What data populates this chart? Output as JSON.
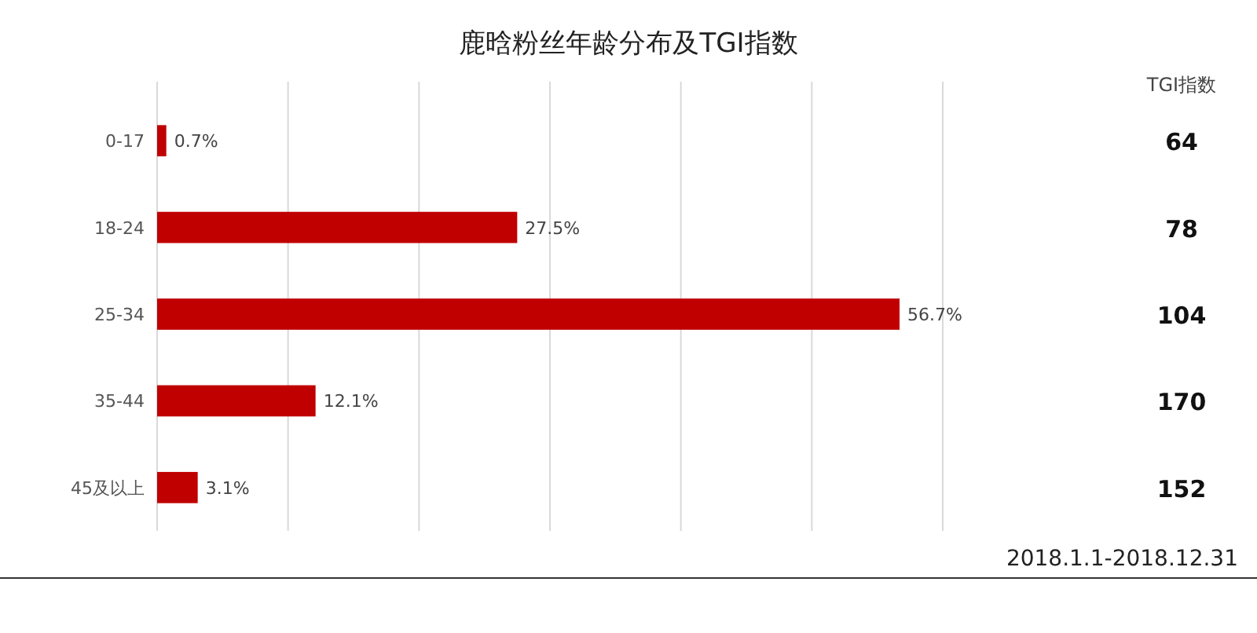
{
  "chart_data": {
    "type": "bar",
    "orientation": "horizontal",
    "title": "鹿晗粉丝年龄分布及TGI指数",
    "categories": [
      "0-17",
      "18-24",
      "25-34",
      "35-44",
      "45及以上"
    ],
    "values": [
      0.7,
      27.5,
      56.7,
      12.1,
      3.1
    ],
    "value_labels": [
      "0.7%",
      "27.5%",
      "56.7%",
      "12.1%",
      "3.1%"
    ],
    "color": "#c00000",
    "xlim": [
      0,
      60
    ],
    "xticks": [
      {
        "value": 0,
        "label": null
      },
      {
        "value": 10,
        "label": null
      },
      {
        "value": 20,
        "label": null
      },
      {
        "value": 30,
        "label": null
      },
      {
        "value": 40,
        "label": null
      },
      {
        "value": 50,
        "label": null
      },
      {
        "value": 60,
        "label": null
      }
    ],
    "grid": "x",
    "tick_labels": "y",
    "annotations": [
      "TGI指数",
      "64",
      "78",
      "104",
      "170",
      "152",
      "2018.1.1-2018.12.31"
    ]
  }
}
